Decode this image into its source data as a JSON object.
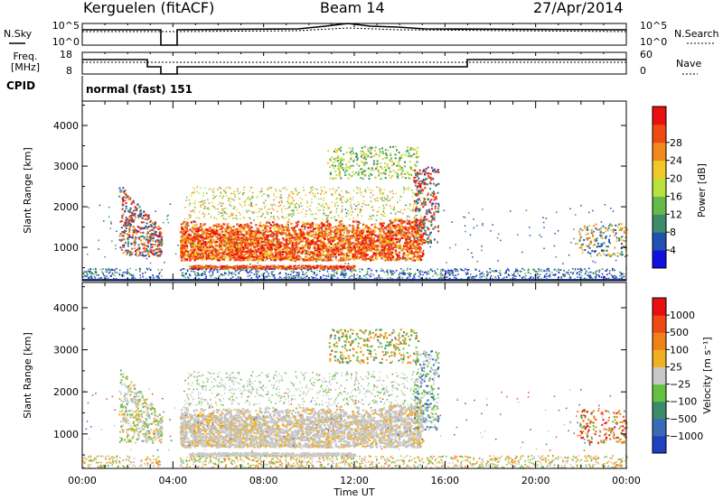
{
  "header": {
    "station": "Kerguelen (fitACF)",
    "beam": "Beam 14",
    "date": "27/Apr/2014"
  },
  "top_panels": {
    "nsky_label": "N.Sky",
    "nsearch_label": "N.Search",
    "freq_label_line1": "Freq.",
    "freq_label_line2": "[MHz]",
    "nave_label": "Nave",
    "cpid_label": "CPID",
    "cpid_value": "normal (fast) 151",
    "noise_ticks_left": [
      "10^5",
      "10^0"
    ],
    "noise_ticks_right": [
      "10^5",
      "10^0"
    ],
    "freq_ticks_left": [
      "18",
      "8"
    ],
    "nave_ticks_right": [
      "60",
      "0"
    ]
  },
  "chart_data": [
    {
      "type": "heatmap",
      "name": "power",
      "ylabel": "Slant Range [km]",
      "ylim": [
        180,
        4600
      ],
      "yticks": [
        1000,
        2000,
        3000,
        4000
      ],
      "xlim": [
        0,
        24
      ],
      "colorbar_label": "Power [dB]",
      "colorbar_ticks": [
        "4",
        "8",
        "12",
        "16",
        "20",
        "24",
        "28"
      ],
      "colorbar_colors": [
        "#1010e0",
        "#2050b0",
        "#3c8c6c",
        "#66b84a",
        "#b8e23c",
        "#f0c828",
        "#f08a1c",
        "#f04a14",
        "#e81010"
      ]
    },
    {
      "type": "heatmap",
      "name": "velocity",
      "ylabel": "Slant Range [km]",
      "ylim": [
        180,
        4600
      ],
      "yticks": [
        1000,
        2000,
        3000,
        4000
      ],
      "xlim": [
        0,
        24
      ],
      "xlabel": "Time UT",
      "xtick_labels": [
        "00:00",
        "04:00",
        "08:00",
        "12:00",
        "16:00",
        "20:00",
        "00:00"
      ],
      "colorbar_label": "Velocity [m s⁻¹]",
      "colorbar_ticks": [
        "1000",
        "500",
        "100",
        "25",
        "−25",
        "−100",
        "−500",
        "−1000"
      ],
      "colorbar_colors": [
        "#2040c0",
        "#3a6ab8",
        "#3c8c6c",
        "#66c040",
        "#c8c8c8",
        "#f0b020",
        "#f08018",
        "#f04a14",
        "#e81010"
      ]
    }
  ]
}
